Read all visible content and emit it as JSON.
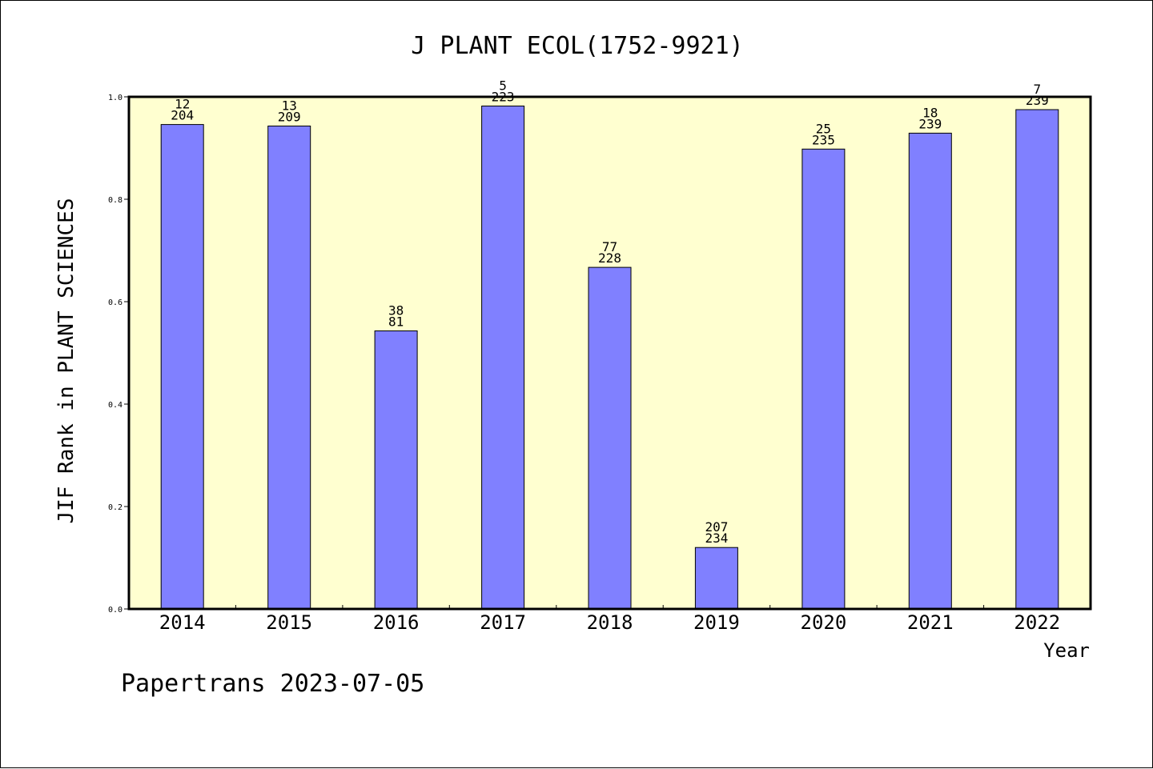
{
  "chart_data": {
    "type": "bar",
    "title": "J PLANT ECOL(1752-9921)",
    "xlabel": "Year",
    "ylabel": "JIF Rank in PLANT SCIENCES",
    "categories": [
      "2014",
      "2015",
      "2016",
      "2017",
      "2018",
      "2019",
      "2020",
      "2021",
      "2022"
    ],
    "values": [
      0.946,
      0.943,
      0.543,
      0.982,
      0.667,
      0.12,
      0.898,
      0.929,
      0.975
    ],
    "rank_labels": [
      "12",
      "13",
      "38",
      "5",
      "77",
      "207",
      "25",
      "18",
      "7"
    ],
    "total_labels": [
      "204",
      "209",
      "81",
      "223",
      "228",
      "234",
      "235",
      "239",
      "239"
    ],
    "ylim": [
      0,
      1
    ],
    "yticks": [
      "0.0",
      "0.2",
      "0.4",
      "0.6",
      "0.8",
      "1.0"
    ],
    "plot_background": "#ffffd0",
    "bar_color": "#8080ff",
    "grid": false
  },
  "footer": "Papertrans 2023-07-05"
}
